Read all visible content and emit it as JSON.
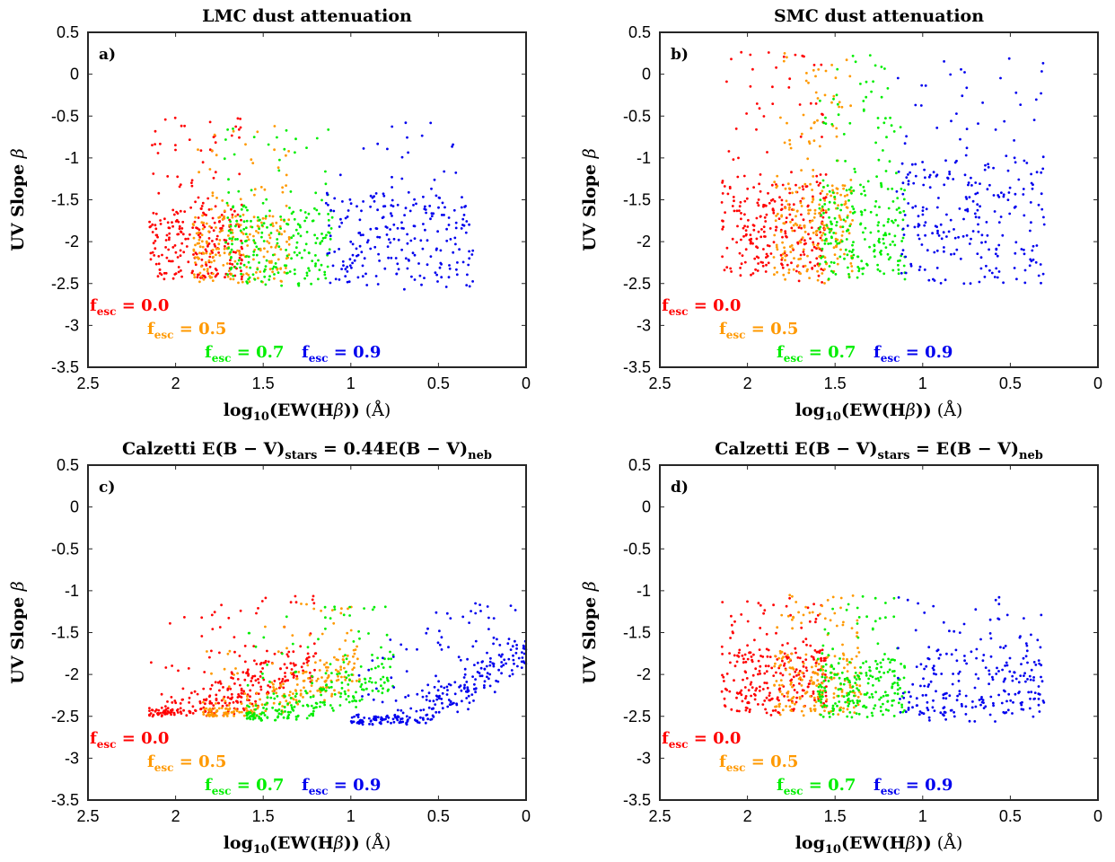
{
  "chart_data": [
    {
      "type": "scatter",
      "panel_label": "a)",
      "title": "LMC dust attenuation",
      "xlabel": "log10(EW(Hβ)) (Å)",
      "ylabel": "UV Slope β",
      "xlim": [
        2.5,
        0
      ],
      "ylim": [
        -3.5,
        0.5
      ],
      "x_reversed": true,
      "x_ticks": [
        "2.5",
        "2",
        "1.5",
        "1",
        "0.5",
        "0"
      ],
      "y_ticks": [
        "0.5",
        "0",
        "-0.5",
        "-1",
        "-1.5",
        "-2",
        "-2.5",
        "-3",
        "-3.5"
      ],
      "legend_placement": "bottom-left, staggered",
      "series": [
        {
          "name": "f_esc = 0.0",
          "color": "#ff0000",
          "x_range": [
            1.62,
            2.15
          ],
          "y_range": [
            -2.45,
            -0.5
          ],
          "y_core": [
            -2.45,
            -1.6
          ],
          "trend": 0.0,
          "n": 260
        },
        {
          "name": "f_esc = 0.5",
          "color": "#ff9900",
          "x_range": [
            1.35,
            1.9
          ],
          "y_range": [
            -2.5,
            -0.6
          ],
          "y_core": [
            -2.5,
            -1.7
          ],
          "trend": 0.0,
          "n": 220
        },
        {
          "name": "f_esc = 0.7",
          "color": "#00ee00",
          "x_range": [
            1.1,
            1.72
          ],
          "y_range": [
            -2.55,
            -0.6
          ],
          "y_core": [
            -2.5,
            -1.6
          ],
          "trend": 0.0,
          "n": 220
        },
        {
          "name": "f_esc = 0.9",
          "color": "#0000ee",
          "x_range": [
            0.3,
            1.15
          ],
          "y_range": [
            -2.6,
            -0.55
          ],
          "y_core": [
            -2.5,
            -1.4
          ],
          "trend": 0.0,
          "n": 240
        }
      ]
    },
    {
      "type": "scatter",
      "panel_label": "b)",
      "title": "SMC dust attenuation",
      "xlabel": "log10(EW(Hβ)) (Å)",
      "ylabel": "UV Slope β",
      "xlim": [
        2.5,
        0
      ],
      "ylim": [
        -3.5,
        0.5
      ],
      "x_reversed": true,
      "x_ticks": [
        "2.5",
        "2",
        "1.5",
        "1",
        "0.5",
        "0"
      ],
      "y_ticks": [
        "0.5",
        "0",
        "-0.5",
        "-1",
        "-1.5",
        "-2",
        "-2.5",
        "-3",
        "-3.5"
      ],
      "legend_placement": "bottom-left, staggered",
      "series": [
        {
          "name": "f_esc = 0.0",
          "color": "#ff0000",
          "x_range": [
            1.55,
            2.15
          ],
          "y_range": [
            -2.5,
            0.3
          ],
          "y_core": [
            -2.4,
            -1.3
          ],
          "trend": 0.0,
          "n": 280
        },
        {
          "name": "f_esc = 0.5",
          "color": "#ff9900",
          "x_range": [
            1.4,
            1.85
          ],
          "y_range": [
            -2.5,
            0.3
          ],
          "y_core": [
            -2.4,
            -1.3
          ],
          "trend": 0.0,
          "n": 240
        },
        {
          "name": "f_esc = 0.7",
          "color": "#00ee00",
          "x_range": [
            1.1,
            1.6
          ],
          "y_range": [
            -2.5,
            0.25
          ],
          "y_core": [
            -2.4,
            -1.3
          ],
          "trend": 0.0,
          "n": 240
        },
        {
          "name": "f_esc = 0.9",
          "color": "#0000ee",
          "x_range": [
            0.3,
            1.15
          ],
          "y_range": [
            -2.55,
            0.25
          ],
          "y_core": [
            -2.5,
            -1.0
          ],
          "trend": 0.0,
          "n": 260
        }
      ]
    },
    {
      "type": "scatter",
      "panel_label": "c)",
      "title": "Calzetti E(B − V)stars = 0.44E(B − V)neb",
      "title_parts": {
        "pre": "Calzetti E(B − V)",
        "sub1": "stars",
        "mid": " = 0.44E(B − V)",
        "sub2": "neb"
      },
      "xlabel": "log10(EW(Hβ)) (Å)",
      "ylabel": "UV Slope β",
      "xlim": [
        2.5,
        0
      ],
      "ylim": [
        -3.5,
        0.5
      ],
      "x_reversed": true,
      "x_ticks": [
        "2.5",
        "2",
        "1.5",
        "1",
        "0.5",
        "0"
      ],
      "y_ticks": [
        "0.5",
        "0",
        "-0.5",
        "-1",
        "-1.5",
        "-2",
        "-2.5",
        "-3",
        "-3.5"
      ],
      "legend_placement": "bottom-left, staggered",
      "series": [
        {
          "name": "f_esc = 0.0",
          "color": "#ff0000",
          "x_range": [
            1.2,
            2.15
          ],
          "y_range": [
            -2.5,
            -1.05
          ],
          "y_core": [
            -2.45,
            -2.0
          ],
          "trend": 0.9,
          "n": 300
        },
        {
          "name": "f_esc = 0.5",
          "color": "#ff9900",
          "x_range": [
            0.95,
            1.85
          ],
          "y_range": [
            -2.5,
            -1.15
          ],
          "y_core": [
            -2.45,
            -2.05
          ],
          "trend": 0.85,
          "n": 240
        },
        {
          "name": "f_esc = 0.7",
          "color": "#00ee00",
          "x_range": [
            0.75,
            1.6
          ],
          "y_range": [
            -2.55,
            -1.15
          ],
          "y_core": [
            -2.5,
            -2.05
          ],
          "trend": 0.8,
          "n": 240
        },
        {
          "name": "f_esc = 0.9",
          "color": "#0000ee",
          "x_range": [
            0.0,
            1.0
          ],
          "y_range": [
            -2.6,
            -1.15
          ],
          "y_core": [
            -2.5,
            -2.15
          ],
          "trend": 1.2,
          "n": 300
        }
      ]
    },
    {
      "type": "scatter",
      "panel_label": "d)",
      "title": "Calzetti E(B − V)stars = E(B − V)neb",
      "title_parts": {
        "pre": "Calzetti E(B − V)",
        "sub1": "stars",
        "mid": " = E(B − V)",
        "sub2": "neb"
      },
      "xlabel": "log10(EW(Hβ)) (Å)",
      "ylabel": "UV Slope β",
      "xlim": [
        2.5,
        0
      ],
      "ylim": [
        -3.5,
        0.5
      ],
      "x_reversed": true,
      "x_ticks": [
        "2.5",
        "2",
        "1.5",
        "1",
        "0.5",
        "0"
      ],
      "y_ticks": [
        "0.5",
        "0",
        "-0.5",
        "-1",
        "-1.5",
        "-2",
        "-2.5",
        "-3",
        "-3.5"
      ],
      "legend_placement": "bottom-left, staggered",
      "series": [
        {
          "name": "f_esc = 0.0",
          "color": "#ff0000",
          "x_range": [
            1.55,
            2.15
          ],
          "y_range": [
            -2.5,
            -1.05
          ],
          "y_core": [
            -2.45,
            -1.7
          ],
          "trend": 0.0,
          "n": 260
        },
        {
          "name": "f_esc = 0.5",
          "color": "#ff9900",
          "x_range": [
            1.35,
            1.85
          ],
          "y_range": [
            -2.5,
            -1.05
          ],
          "y_core": [
            -2.45,
            -1.75
          ],
          "trend": 0.0,
          "n": 220
        },
        {
          "name": "f_esc = 0.7",
          "color": "#00ee00",
          "x_range": [
            1.1,
            1.6
          ],
          "y_range": [
            -2.55,
            -1.05
          ],
          "y_core": [
            -2.5,
            -1.8
          ],
          "trend": 0.0,
          "n": 220
        },
        {
          "name": "f_esc = 0.9",
          "color": "#0000ee",
          "x_range": [
            0.3,
            1.15
          ],
          "y_range": [
            -2.6,
            -1.05
          ],
          "y_core": [
            -2.5,
            -1.7
          ],
          "trend": 0.0,
          "n": 240
        }
      ]
    }
  ],
  "labels": {
    "y_axis": {
      "main": "UV Slope ",
      "symbol": "β"
    },
    "x_axis": {
      "log": "log",
      "base": "10",
      "open": "(",
      "ew": "EW(H",
      "beta": "β",
      "close": "))",
      "unit": " (Å)"
    },
    "legend": {
      "f": "f",
      "esc": "esc",
      "items": [
        {
          "value": " = 0.0",
          "color": "#ff0000"
        },
        {
          "value": " = 0.5",
          "color": "#ff9900"
        },
        {
          "value": " = 0.7",
          "color": "#00ee00"
        },
        {
          "value": " = 0.9",
          "color": "#0000ee"
        }
      ]
    }
  }
}
